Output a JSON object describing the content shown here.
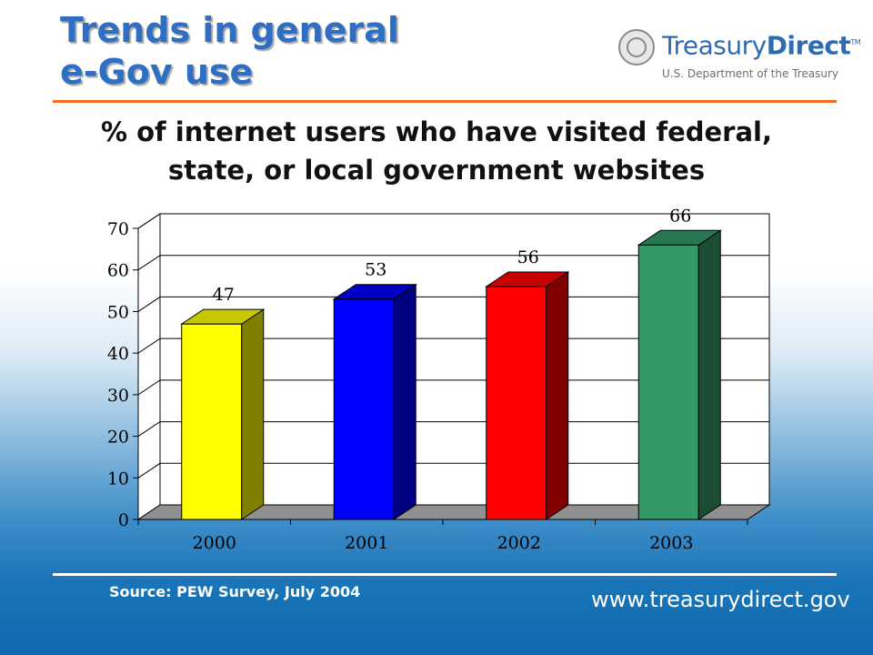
{
  "slide": {
    "title_line1": "Trends in general",
    "title_line2": "e-Gov use",
    "subtitle_line1": "% of internet users who have visited federal,",
    "subtitle_line2": "state, or local government websites",
    "source": "Source:  PEW Survey, July 2004",
    "url": "www.treasurydirect.gov"
  },
  "logo": {
    "name_part1": "Treasury",
    "name_part2": "Direct",
    "tm": "TM",
    "tagline": "U.S. Department of the Treasury",
    "icon": "treasury-seal-icon"
  },
  "colors": {
    "accent_orange": "#f26d21",
    "title_blue": "#2e6fc3"
  },
  "chart_data": {
    "type": "bar",
    "style": "3d",
    "categories": [
      "2000",
      "2001",
      "2002",
      "2003"
    ],
    "values": [
      47,
      53,
      56,
      66
    ],
    "data_labels": [
      "47",
      "53",
      "56",
      "66"
    ],
    "y_ticks": [
      "0",
      "10",
      "20",
      "30",
      "40",
      "50",
      "60",
      "70"
    ],
    "ylim": [
      0,
      70
    ],
    "y_step": 10,
    "grid": true,
    "legend": "none",
    "bar_colors": [
      "#ffff00",
      "#0000ff",
      "#ff0000",
      "#339966"
    ]
  }
}
